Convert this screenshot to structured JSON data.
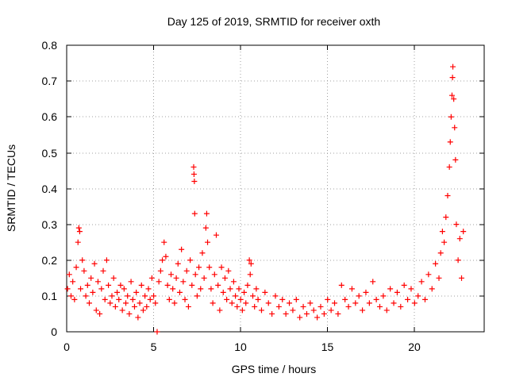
{
  "chart_data": {
    "type": "scatter",
    "title": "Day 125 of 2019, SRMTID for receiver oxth",
    "xlabel": "GPS time / hours",
    "ylabel": "SRMTID / TECUs",
    "xlim": [
      0,
      24
    ],
    "ylim": [
      0,
      0.8
    ],
    "xticks": [
      "0",
      "5",
      "10",
      "15",
      "20"
    ],
    "yticks": [
      "0",
      "0.1",
      "0.2",
      "0.3",
      "0.4",
      "0.5",
      "0.6",
      "0.7",
      "0.8"
    ],
    "grid": true,
    "marker": "plus",
    "color": "#ff0000",
    "series": [
      {
        "name": "SRMTID",
        "points": [
          [
            0.05,
            0.12
          ],
          [
            0.15,
            0.16
          ],
          [
            0.25,
            0.1
          ],
          [
            0.35,
            0.14
          ],
          [
            0.45,
            0.09
          ],
          [
            0.55,
            0.18
          ],
          [
            0.65,
            0.25
          ],
          [
            0.7,
            0.29
          ],
          [
            0.75,
            0.28
          ],
          [
            0.8,
            0.12
          ],
          [
            0.9,
            0.2
          ],
          [
            1.0,
            0.17
          ],
          [
            1.1,
            0.1
          ],
          [
            1.2,
            0.13
          ],
          [
            1.3,
            0.08
          ],
          [
            1.4,
            0.15
          ],
          [
            1.5,
            0.11
          ],
          [
            1.6,
            0.19
          ],
          [
            1.7,
            0.06
          ],
          [
            1.8,
            0.14
          ],
          [
            1.9,
            0.05
          ],
          [
            2.0,
            0.12
          ],
          [
            2.1,
            0.17
          ],
          [
            2.2,
            0.09
          ],
          [
            2.3,
            0.2
          ],
          [
            2.4,
            0.13
          ],
          [
            2.5,
            0.08
          ],
          [
            2.6,
            0.1
          ],
          [
            2.7,
            0.15
          ],
          [
            2.8,
            0.07
          ],
          [
            2.9,
            0.11
          ],
          [
            3.0,
            0.09
          ],
          [
            3.1,
            0.13
          ],
          [
            3.2,
            0.06
          ],
          [
            3.3,
            0.12
          ],
          [
            3.4,
            0.08
          ],
          [
            3.5,
            0.1
          ],
          [
            3.6,
            0.05
          ],
          [
            3.7,
            0.14
          ],
          [
            3.8,
            0.09
          ],
          [
            3.9,
            0.07
          ],
          [
            4.0,
            0.11
          ],
          [
            4.1,
            0.04
          ],
          [
            4.2,
            0.08
          ],
          [
            4.3,
            0.13
          ],
          [
            4.4,
            0.06
          ],
          [
            4.5,
            0.1
          ],
          [
            4.6,
            0.07
          ],
          [
            4.7,
            0.12
          ],
          [
            4.8,
            0.09
          ],
          [
            4.9,
            0.15
          ],
          [
            5.0,
            0.1
          ],
          [
            5.1,
            0.08
          ],
          [
            5.2,
            0.0
          ],
          [
            5.3,
            0.14
          ],
          [
            5.4,
            0.17
          ],
          [
            5.5,
            0.2
          ],
          [
            5.6,
            0.25
          ],
          [
            5.7,
            0.21
          ],
          [
            5.8,
            0.13
          ],
          [
            5.9,
            0.09
          ],
          [
            6.0,
            0.16
          ],
          [
            6.1,
            0.12
          ],
          [
            6.2,
            0.08
          ],
          [
            6.3,
            0.15
          ],
          [
            6.4,
            0.19
          ],
          [
            6.5,
            0.11
          ],
          [
            6.6,
            0.23
          ],
          [
            6.7,
            0.14
          ],
          [
            6.8,
            0.09
          ],
          [
            6.9,
            0.17
          ],
          [
            7.0,
            0.07
          ],
          [
            7.1,
            0.2
          ],
          [
            7.2,
            0.13
          ],
          [
            7.3,
            0.46
          ],
          [
            7.32,
            0.44
          ],
          [
            7.34,
            0.42
          ],
          [
            7.36,
            0.33
          ],
          [
            7.4,
            0.16
          ],
          [
            7.5,
            0.1
          ],
          [
            7.6,
            0.18
          ],
          [
            7.7,
            0.12
          ],
          [
            7.8,
            0.22
          ],
          [
            7.9,
            0.15
          ],
          [
            8.0,
            0.29
          ],
          [
            8.05,
            0.33
          ],
          [
            8.1,
            0.25
          ],
          [
            8.2,
            0.18
          ],
          [
            8.3,
            0.12
          ],
          [
            8.4,
            0.08
          ],
          [
            8.5,
            0.16
          ],
          [
            8.6,
            0.27
          ],
          [
            8.7,
            0.13
          ],
          [
            8.8,
            0.06
          ],
          [
            8.9,
            0.18
          ],
          [
            9.0,
            0.11
          ],
          [
            9.1,
            0.15
          ],
          [
            9.2,
            0.09
          ],
          [
            9.3,
            0.17
          ],
          [
            9.4,
            0.12
          ],
          [
            9.5,
            0.08
          ],
          [
            9.6,
            0.14
          ],
          [
            9.7,
            0.1
          ],
          [
            9.8,
            0.07
          ],
          [
            9.9,
            0.12
          ],
          [
            10.0,
            0.09
          ],
          [
            10.1,
            0.06
          ],
          [
            10.2,
            0.11
          ],
          [
            10.3,
            0.08
          ],
          [
            10.4,
            0.13
          ],
          [
            10.5,
            0.2
          ],
          [
            10.55,
            0.16
          ],
          [
            10.6,
            0.19
          ],
          [
            10.7,
            0.1
          ],
          [
            10.8,
            0.07
          ],
          [
            10.9,
            0.12
          ],
          [
            11.0,
            0.09
          ],
          [
            11.2,
            0.06
          ],
          [
            11.4,
            0.11
          ],
          [
            11.6,
            0.08
          ],
          [
            11.8,
            0.05
          ],
          [
            12.0,
            0.1
          ],
          [
            12.2,
            0.07
          ],
          [
            12.4,
            0.09
          ],
          [
            12.6,
            0.05
          ],
          [
            12.8,
            0.08
          ],
          [
            13.0,
            0.06
          ],
          [
            13.2,
            0.09
          ],
          [
            13.4,
            0.04
          ],
          [
            13.6,
            0.07
          ],
          [
            13.8,
            0.05
          ],
          [
            14.0,
            0.08
          ],
          [
            14.2,
            0.06
          ],
          [
            14.4,
            0.04
          ],
          [
            14.6,
            0.07
          ],
          [
            14.8,
            0.05
          ],
          [
            15.0,
            0.09
          ],
          [
            15.2,
            0.06
          ],
          [
            15.4,
            0.08
          ],
          [
            15.6,
            0.05
          ],
          [
            15.8,
            0.13
          ],
          [
            16.0,
            0.09
          ],
          [
            16.2,
            0.07
          ],
          [
            16.4,
            0.12
          ],
          [
            16.6,
            0.08
          ],
          [
            16.8,
            0.1
          ],
          [
            17.0,
            0.06
          ],
          [
            17.2,
            0.11
          ],
          [
            17.4,
            0.08
          ],
          [
            17.6,
            0.14
          ],
          [
            17.8,
            0.09
          ],
          [
            18.0,
            0.07
          ],
          [
            18.2,
            0.1
          ],
          [
            18.4,
            0.06
          ],
          [
            18.6,
            0.12
          ],
          [
            18.8,
            0.08
          ],
          [
            19.0,
            0.11
          ],
          [
            19.2,
            0.07
          ],
          [
            19.4,
            0.13
          ],
          [
            19.6,
            0.09
          ],
          [
            19.8,
            0.12
          ],
          [
            20.0,
            0.08
          ],
          [
            20.2,
            0.1
          ],
          [
            20.4,
            0.14
          ],
          [
            20.6,
            0.09
          ],
          [
            20.8,
            0.16
          ],
          [
            21.0,
            0.12
          ],
          [
            21.2,
            0.19
          ],
          [
            21.4,
            0.15
          ],
          [
            21.5,
            0.22
          ],
          [
            21.6,
            0.28
          ],
          [
            21.7,
            0.25
          ],
          [
            21.8,
            0.32
          ],
          [
            21.9,
            0.38
          ],
          [
            22.0,
            0.46
          ],
          [
            22.05,
            0.53
          ],
          [
            22.1,
            0.6
          ],
          [
            22.15,
            0.66
          ],
          [
            22.18,
            0.71
          ],
          [
            22.2,
            0.74
          ],
          [
            22.25,
            0.65
          ],
          [
            22.3,
            0.57
          ],
          [
            22.35,
            0.48
          ],
          [
            22.4,
            0.3
          ],
          [
            22.5,
            0.2
          ],
          [
            22.6,
            0.26
          ],
          [
            22.7,
            0.15
          ],
          [
            22.8,
            0.28
          ]
        ]
      }
    ]
  }
}
